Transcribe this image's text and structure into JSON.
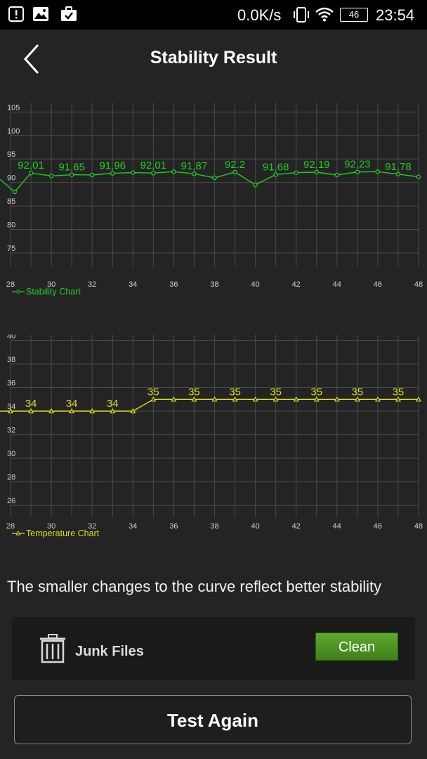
{
  "status_bar": {
    "net_speed": "0.0K/s",
    "battery": "46",
    "time": "23:54",
    "icons": [
      "alert-icon",
      "image-icon",
      "briefcase-check-icon",
      "vibrate-icon",
      "wifi-icon",
      "battery-icon"
    ]
  },
  "header": {
    "title": "Stability Result",
    "back_icon": "chevron-left-icon"
  },
  "colors": {
    "background": "#242424",
    "stability_line": "#22cc22",
    "temperature_line": "#dddd22",
    "grid": "#4a4a4a",
    "clean_button": "#4f9422"
  },
  "chart_data": [
    {
      "type": "line",
      "name": "stability-chart",
      "legend": "Stability Chart",
      "legend_placement": "bottom-left",
      "xlim": [
        28,
        48
      ],
      "ylim": [
        72,
        107
      ],
      "xticks": [
        28,
        30,
        32,
        34,
        36,
        38,
        40,
        42,
        44,
        46,
        48
      ],
      "yticks": [
        75,
        80,
        85,
        90,
        95,
        100,
        105
      ],
      "grid": true,
      "series": [
        {
          "x": [
            28.2,
            29,
            30,
            31,
            32,
            33,
            34,
            35,
            36,
            37,
            38,
            39,
            40,
            41,
            42,
            43,
            44,
            45,
            46,
            47,
            48
          ],
          "y": [
            88.0,
            92.01,
            91.4,
            91.65,
            91.6,
            91.96,
            92.1,
            92.01,
            92.3,
            91.87,
            91.0,
            92.2,
            89.5,
            91.68,
            92.1,
            92.19,
            91.6,
            92.23,
            92.3,
            91.78,
            91.2
          ],
          "labels": [
            null,
            "92,01",
            null,
            "91,65",
            null,
            "91,96",
            null,
            "92,01",
            null,
            "91,87",
            null,
            "92.2",
            null,
            "91,68",
            null,
            "92,19",
            null,
            "92,23",
            null,
            "91,78",
            null
          ]
        }
      ]
    },
    {
      "type": "line",
      "name": "temperature-chart",
      "legend": "Temperature Chart",
      "legend_placement": "bottom-left",
      "xlim": [
        28,
        48
      ],
      "ylim": [
        25,
        40.5
      ],
      "xticks": [
        28,
        30,
        32,
        34,
        36,
        38,
        40,
        42,
        44,
        46,
        48
      ],
      "yticks": [
        26,
        28,
        30,
        32,
        34,
        36,
        38,
        40
      ],
      "grid": true,
      "series": [
        {
          "x": [
            28,
            29,
            30,
            31,
            32,
            33,
            34,
            35,
            36,
            37,
            38,
            39,
            40,
            41,
            42,
            43,
            44,
            45,
            46,
            47,
            48
          ],
          "y": [
            34,
            34,
            34,
            34,
            34,
            34,
            34,
            35,
            35,
            35,
            35,
            35,
            35,
            35,
            35,
            35,
            35,
            35,
            35,
            35,
            35
          ],
          "labels": [
            null,
            "34",
            null,
            "34",
            null,
            "34",
            null,
            "35",
            null,
            "35",
            null,
            "35",
            null,
            "35",
            null,
            "35",
            null,
            "35",
            null,
            "35",
            null
          ]
        }
      ]
    }
  ],
  "hint_text": "The smaller changes to the curve reflect better stability",
  "junk": {
    "icon": "trash-icon",
    "label": "Junk Files",
    "button": "Clean"
  },
  "test_again": "Test Again"
}
